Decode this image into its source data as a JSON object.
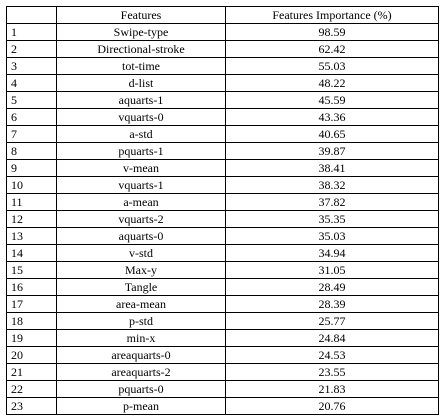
{
  "table": {
    "headers": [
      "",
      "Features",
      "Features Importance (%)"
    ],
    "rows": [
      {
        "index": "1",
        "feature": "Swipe-type",
        "importance": "98.59"
      },
      {
        "index": "2",
        "feature": "Directional-stroke",
        "importance": "62.42"
      },
      {
        "index": "3",
        "feature": "tot-time",
        "importance": "55.03"
      },
      {
        "index": "4",
        "feature": "d-list",
        "importance": "48.22"
      },
      {
        "index": "5",
        "feature": "aquarts-1",
        "importance": "45.59"
      },
      {
        "index": "6",
        "feature": "vquarts-0",
        "importance": "43.36"
      },
      {
        "index": "7",
        "feature": "a-std",
        "importance": "40.65"
      },
      {
        "index": "8",
        "feature": "pquarts-1",
        "importance": "39.87"
      },
      {
        "index": "9",
        "feature": "v-mean",
        "importance": "38.41"
      },
      {
        "index": "10",
        "feature": "vquarts-1",
        "importance": "38.32"
      },
      {
        "index": "11",
        "feature": "a-mean",
        "importance": "37.82"
      },
      {
        "index": "12",
        "feature": "vquarts-2",
        "importance": "35.35"
      },
      {
        "index": "13",
        "feature": "aquarts-0",
        "importance": "35.03"
      },
      {
        "index": "14",
        "feature": "v-std",
        "importance": "34.94"
      },
      {
        "index": "15",
        "feature": "Max-y",
        "importance": "31.05"
      },
      {
        "index": "16",
        "feature": "Tangle",
        "importance": "28.49"
      },
      {
        "index": "17",
        "feature": "area-mean",
        "importance": "28.39"
      },
      {
        "index": "18",
        "feature": "p-std",
        "importance": "25.77"
      },
      {
        "index": "19",
        "feature": "min-x",
        "importance": "24.84"
      },
      {
        "index": "20",
        "feature": "areaquarts-0",
        "importance": "24.53"
      },
      {
        "index": "21",
        "feature": "areaquarts-2",
        "importance": "23.55"
      },
      {
        "index": "22",
        "feature": "pquarts-0",
        "importance": "21.83"
      },
      {
        "index": "23",
        "feature": "p-mean",
        "importance": "20.76"
      }
    ]
  }
}
